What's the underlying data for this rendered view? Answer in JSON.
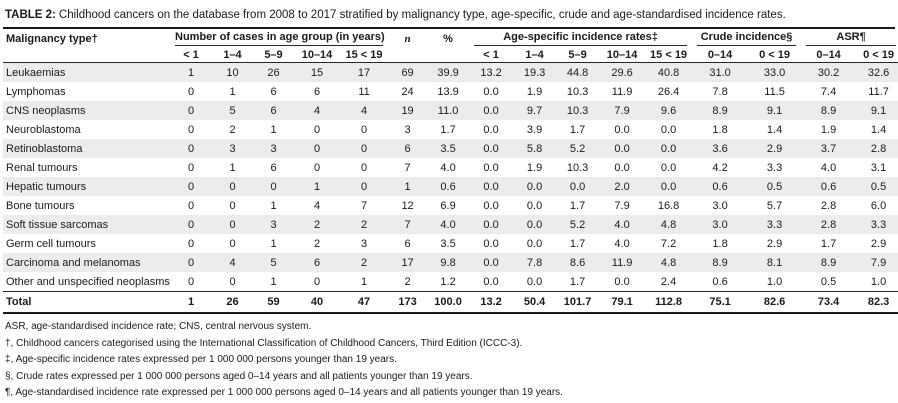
{
  "title": {
    "label": "TABLE 2:",
    "text": "Childhood cancers on the database from 2008 to 2017 stratified by malignancy type, age-specific, crude and age-standardised incidence rates."
  },
  "table": {
    "col_groups": {
      "malignancy": "Malignancy type†",
      "cases": "Number of cases in age group (in years)",
      "n": "n",
      "pct": "%",
      "age_specific": "Age-specific incidence rates‡",
      "crude": "Crude incidence§",
      "asr": "ASR¶"
    },
    "sub_headers": {
      "cases": [
        "< 1",
        "1–4",
        "5–9",
        "10–14",
        "15 < 19"
      ],
      "rates": [
        "< 1",
        "1–4",
        "5–9",
        "10–14",
        "15 < 19"
      ],
      "crude": [
        "0–14",
        "0 < 19"
      ],
      "asr": [
        "0–14",
        "0 < 19"
      ]
    },
    "rows": [
      {
        "label": "Leukaemias",
        "values": [
          "1",
          "10",
          "26",
          "15",
          "17",
          "69",
          "39.9",
          "13.2",
          "19.3",
          "44.8",
          "29.6",
          "40.8",
          "31.0",
          "33.0",
          "30.2",
          "32.6"
        ]
      },
      {
        "label": "Lymphomas",
        "values": [
          "0",
          "1",
          "6",
          "6",
          "11",
          "24",
          "13.9",
          "0.0",
          "1.9",
          "10.3",
          "11.9",
          "26.4",
          "7.8",
          "11.5",
          "7.4",
          "11.7"
        ]
      },
      {
        "label": "CNS neoplasms",
        "values": [
          "0",
          "5",
          "6",
          "4",
          "4",
          "19",
          "11.0",
          "0.0",
          "9.7",
          "10.3",
          "7.9",
          "9.6",
          "8.9",
          "9.1",
          "8.9",
          "9.1"
        ]
      },
      {
        "label": "Neuroblastoma",
        "values": [
          "0",
          "2",
          "1",
          "0",
          "0",
          "3",
          "1.7",
          "0.0",
          "3.9",
          "1.7",
          "0.0",
          "0.0",
          "1.8",
          "1.4",
          "1.9",
          "1.4"
        ]
      },
      {
        "label": "Retinoblastoma",
        "values": [
          "0",
          "3",
          "3",
          "0",
          "0",
          "6",
          "3.5",
          "0.0",
          "5.8",
          "5.2",
          "0.0",
          "0.0",
          "3.6",
          "2.9",
          "3.7",
          "2.8"
        ]
      },
      {
        "label": "Renal tumours",
        "values": [
          "0",
          "1",
          "6",
          "0",
          "0",
          "7",
          "4.0",
          "0.0",
          "1.9",
          "10.3",
          "0.0",
          "0.0",
          "4.2",
          "3.3",
          "4.0",
          "3.1"
        ]
      },
      {
        "label": "Hepatic tumours",
        "values": [
          "0",
          "0",
          "0",
          "1",
          "0",
          "1",
          "0.6",
          "0.0",
          "0.0",
          "0.0",
          "2.0",
          "0.0",
          "0.6",
          "0.5",
          "0.6",
          "0.5"
        ]
      },
      {
        "label": "Bone tumours",
        "values": [
          "0",
          "0",
          "1",
          "4",
          "7",
          "12",
          "6.9",
          "0.0",
          "0.0",
          "1.7",
          "7.9",
          "16.8",
          "3.0",
          "5.7",
          "2.8",
          "6.0"
        ]
      },
      {
        "label": "Soft tissue sarcomas",
        "values": [
          "0",
          "0",
          "3",
          "2",
          "2",
          "7",
          "4.0",
          "0.0",
          "0.0",
          "5.2",
          "4.0",
          "4.8",
          "3.0",
          "3.3",
          "2.8",
          "3.3"
        ]
      },
      {
        "label": "Germ cell tumours",
        "values": [
          "0",
          "0",
          "1",
          "2",
          "3",
          "6",
          "3.5",
          "0.0",
          "0.0",
          "1.7",
          "4.0",
          "7.2",
          "1.8",
          "2.9",
          "1.7",
          "2.9"
        ]
      },
      {
        "label": "Carcinoma and melanomas",
        "values": [
          "0",
          "4",
          "5",
          "6",
          "2",
          "17",
          "9.8",
          "0.0",
          "7.8",
          "8.6",
          "11.9",
          "4.8",
          "8.9",
          "8.1",
          "8.9",
          "7.9"
        ]
      },
      {
        "label": "Other and unspecified neoplasms",
        "values": [
          "0",
          "0",
          "1",
          "0",
          "1",
          "2",
          "1.2",
          "0.0",
          "0.0",
          "1.7",
          "0.0",
          "2.4",
          "0.6",
          "1.0",
          "0.5",
          "1.0"
        ]
      }
    ],
    "total": {
      "label": "Total",
      "values": [
        "1",
        "26",
        "59",
        "40",
        "47",
        "173",
        "100.0",
        "13.2",
        "50.4",
        "101.7",
        "79.1",
        "112.8",
        "75.1",
        "82.6",
        "73.4",
        "82.3"
      ]
    }
  },
  "footnotes": [
    "ASR, age-standardised incidence rate; CNS, central nervous system.",
    "†, Childhood cancers categorised using the International Classification of Childhood Cancers, Third Edition (ICCC-3).",
    "‡, Age-specific incidence rates expressed per 1 000 000 persons younger than 19 years.",
    "§, Crude rates expressed per 1 000 000 persons aged 0–14 years and all patients younger than 19 years.",
    "¶, Age-standardised incidence rate expressed per 1 000 000 persons aged 0–14 years and all patients younger than 19 years."
  ]
}
